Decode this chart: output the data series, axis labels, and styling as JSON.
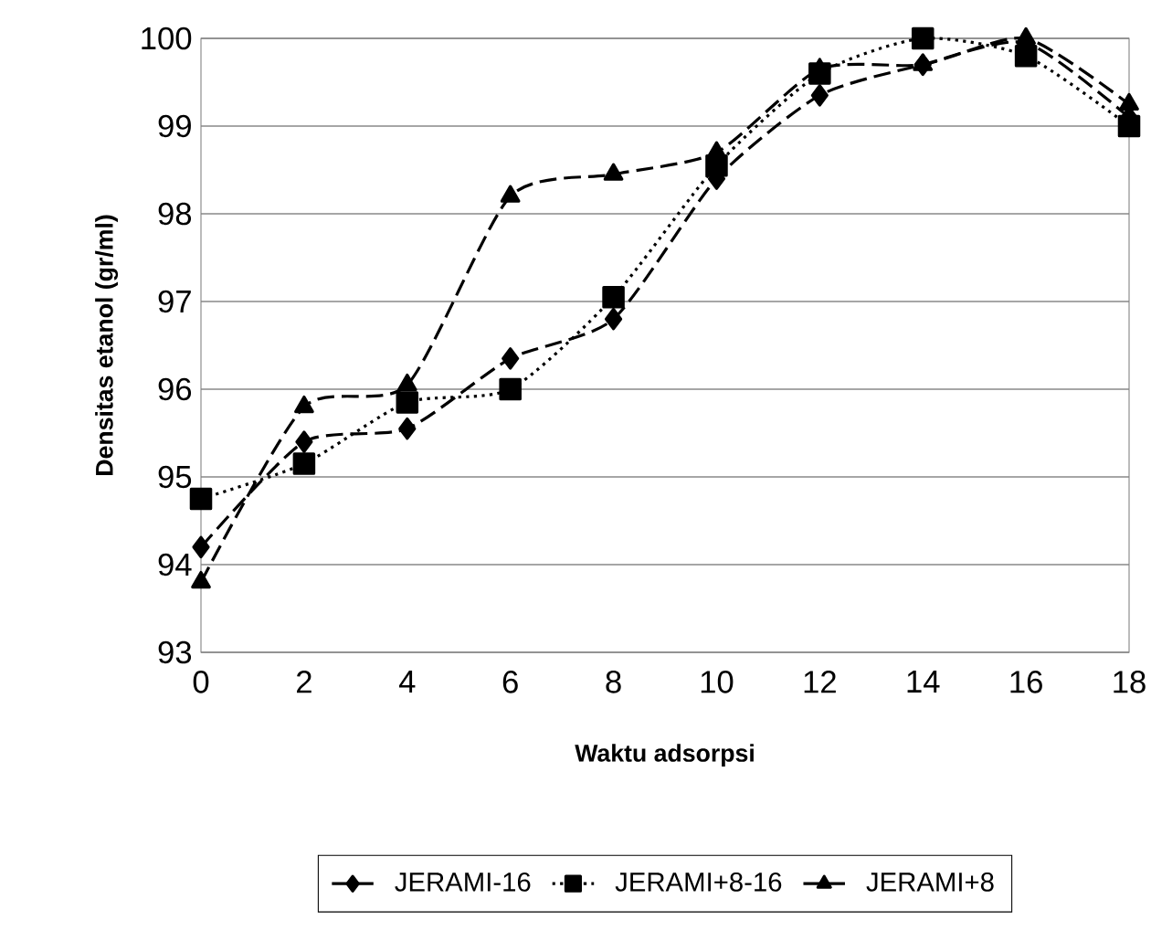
{
  "chart_data": {
    "type": "line",
    "xlabel": "Waktu adsorpsi",
    "ylabel": "Densitas etanol (gr/ml)",
    "x": [
      0,
      2,
      4,
      6,
      8,
      10,
      12,
      14,
      16,
      18
    ],
    "xlim": [
      0,
      18
    ],
    "xticks": [
      0,
      2,
      4,
      6,
      8,
      10,
      12,
      14,
      16,
      18
    ],
    "ylim": [
      93,
      100
    ],
    "yticks": [
      93,
      94,
      95,
      96,
      97,
      98,
      99,
      100
    ],
    "grid": "y",
    "legend": "bottom",
    "series": [
      {
        "name": "JERAMI-16",
        "color": "#000000",
        "marker": "diamond",
        "line_style": "dashed",
        "values": [
          94.2,
          95.4,
          95.55,
          96.35,
          96.8,
          98.4,
          99.35,
          99.7,
          99.95,
          99.1
        ]
      },
      {
        "name": "JERAMI+8-16",
        "color": "#000000",
        "marker": "square",
        "line_style": "dotted",
        "values": [
          94.75,
          95.15,
          95.85,
          96.0,
          97.05,
          98.55,
          99.6,
          100.0,
          99.8,
          99.0
        ]
      },
      {
        "name": "JERAMI+8",
        "color": "#000000",
        "marker": "triangle",
        "line_style": "dashed",
        "values": [
          93.8,
          95.8,
          96.05,
          98.2,
          98.45,
          98.7,
          99.65,
          99.7,
          100.0,
          99.25
        ]
      }
    ]
  }
}
